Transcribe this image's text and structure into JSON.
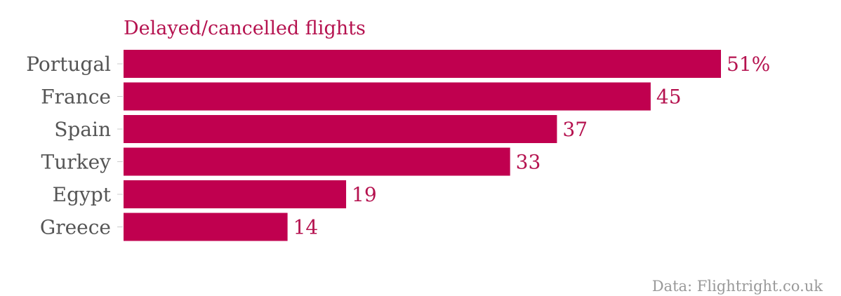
{
  "chart_data": {
    "type": "bar",
    "orientation": "horizontal",
    "title": "Delayed/cancelled flights",
    "categories": [
      "Portugal",
      "France",
      "Spain",
      "Turkey",
      "Egypt",
      "Greece"
    ],
    "values": [
      51,
      45,
      37,
      33,
      19,
      14
    ],
    "value_labels": [
      "51%",
      "45",
      "37",
      "33",
      "19",
      "14"
    ],
    "unit": "%",
    "xlim": [
      0,
      51
    ],
    "grid": false,
    "legend": "none",
    "source": "Data: Flightright.co.uk"
  },
  "colors": {
    "bar": "#c0004f",
    "title": "#b5124f",
    "value_label": "#b5124f",
    "category_label": "#555555",
    "tick": "#cccccc",
    "source": "#999999"
  }
}
